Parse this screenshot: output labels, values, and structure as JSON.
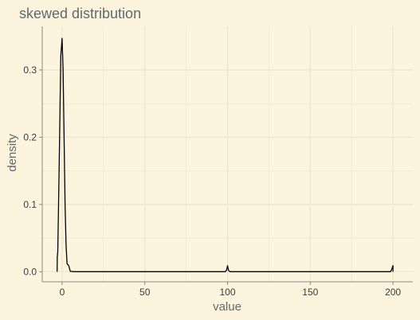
{
  "chart_data": {
    "type": "line",
    "title": "skewed distribution",
    "xlabel": "value",
    "ylabel": "density",
    "xlim": [
      -12,
      212
    ],
    "ylim": [
      -0.015,
      0.365
    ],
    "xticks": [
      0,
      50,
      100,
      150,
      200
    ],
    "yticks": [
      0.0,
      0.1,
      0.2,
      0.3
    ],
    "ytick_labels": [
      "0.0",
      "0.1",
      "0.2",
      "0.3"
    ],
    "grid": true,
    "legend": "none",
    "colors": {
      "background": "#fdf4de",
      "grid": "#efe4cb",
      "axis": "#8a8a8a",
      "line": "#000000"
    },
    "series": [
      {
        "x": [
          -3,
          -2.9,
          -2.6,
          -2.2,
          -1.5,
          -0.8,
          0,
          0.6,
          1.2,
          1.8,
          2.4,
          3.0,
          4.0,
          5.0,
          8,
          20,
          60,
          98.5,
          99.4,
          100,
          100.6,
          101.5,
          140,
          180,
          197,
          198.4,
          199,
          199.3,
          199.6,
          200,
          200
        ],
        "y": [
          0,
          0.022,
          0.03,
          0.09,
          0.2,
          0.32,
          0.347,
          0.3,
          0.2,
          0.1,
          0.04,
          0.012,
          0.009,
          0.0005,
          0,
          0,
          0,
          0,
          0.002,
          0.009,
          0.002,
          0,
          0,
          0,
          0,
          0,
          0.002,
          0.004,
          0.006,
          0.009,
          0
        ]
      }
    ]
  }
}
